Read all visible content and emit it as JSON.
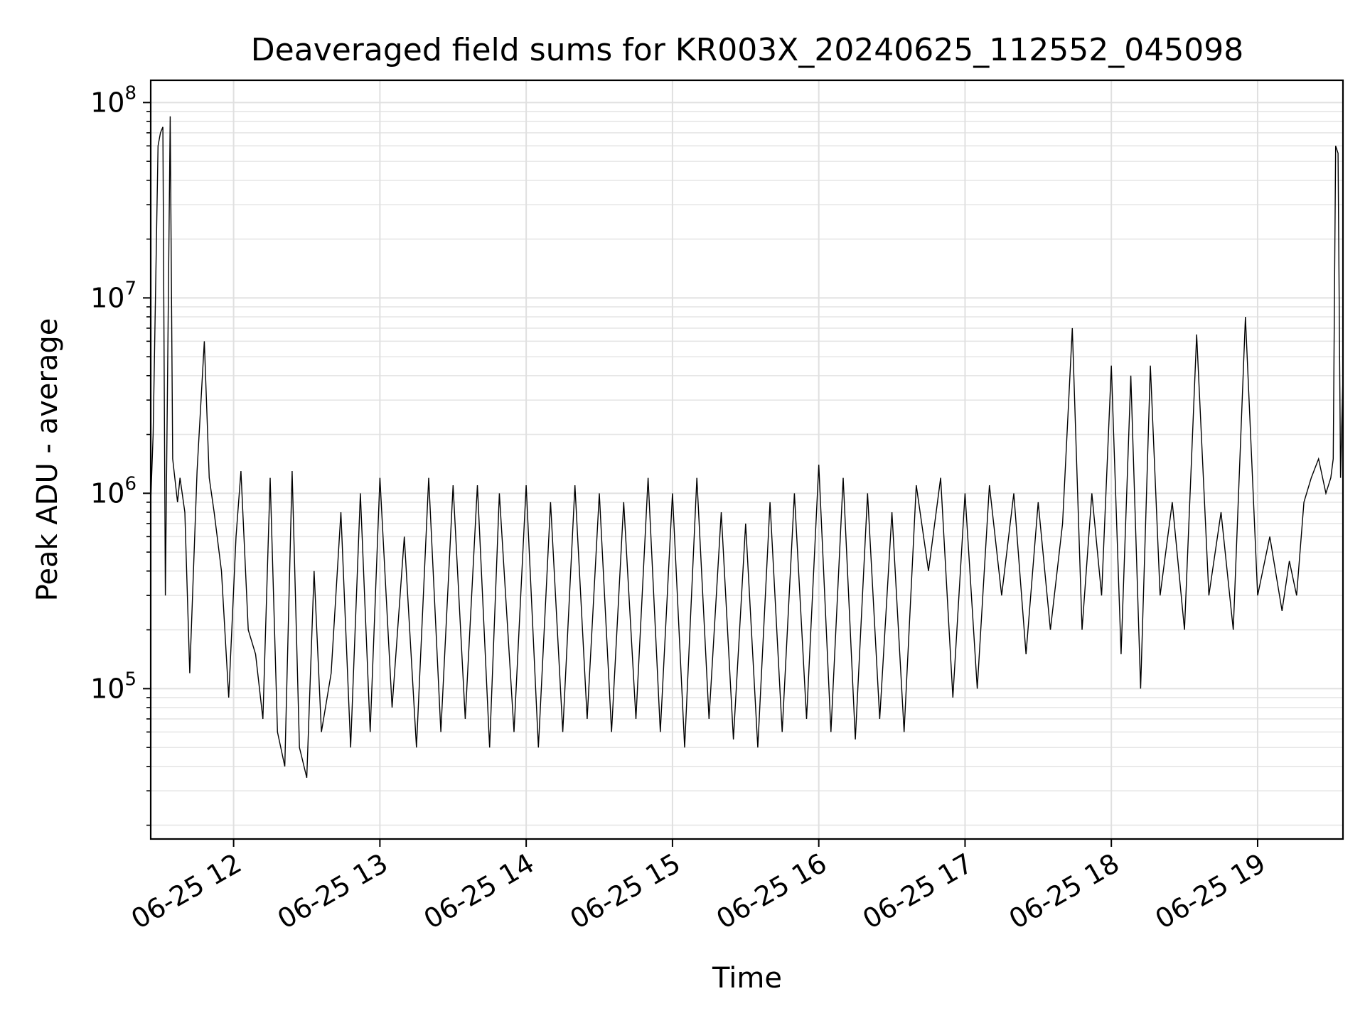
{
  "chart_data": {
    "type": "line",
    "title": "Deaveraged field sums for KR003X_20240625_112552_045098",
    "xlabel": "Time",
    "ylabel": "Peak ADU - average",
    "xscale": "time",
    "yscale": "log",
    "grid": true,
    "x_range": [
      "2024-06-25 11:26",
      "2024-06-25 19:35"
    ],
    "ylim": [
      17000,
      130000000
    ],
    "x_ticks": [
      "2024-06-25 12:00",
      "2024-06-25 13:00",
      "2024-06-25 14:00",
      "2024-06-25 15:00",
      "2024-06-25 16:00",
      "2024-06-25 17:00",
      "2024-06-25 18:00",
      "2024-06-25 19:00"
    ],
    "x_tick_labels": [
      "06-25 12",
      "06-25 13",
      "06-25 14",
      "06-25 15",
      "06-25 16",
      "06-25 17",
      "06-25 18",
      "06-25 19"
    ],
    "y_ticks": [
      100000,
      1000000,
      10000000,
      100000000
    ],
    "y_tick_labels": [
      {
        "base": "10",
        "exp": "5"
      },
      {
        "base": "10",
        "exp": "6"
      },
      {
        "base": "10",
        "exp": "7"
      },
      {
        "base": "10",
        "exp": "8"
      }
    ],
    "series": [
      {
        "color": "#000000",
        "x": [
          "2024-06-25 11:26",
          "2024-06-25 11:27",
          "2024-06-25 11:29",
          "2024-06-25 11:30",
          "2024-06-25 11:31",
          "2024-06-25 11:32",
          "2024-06-25 11:34",
          "2024-06-25 11:35",
          "2024-06-25 11:37",
          "2024-06-25 11:38",
          "2024-06-25 11:40",
          "2024-06-25 11:42",
          "2024-06-25 11:45",
          "2024-06-25 11:48",
          "2024-06-25 11:50",
          "2024-06-25 11:52",
          "2024-06-25 11:55",
          "2024-06-25 11:58",
          "2024-06-25 12:01",
          "2024-06-25 12:03",
          "2024-06-25 12:06",
          "2024-06-25 12:09",
          "2024-06-25 12:12",
          "2024-06-25 12:15",
          "2024-06-25 12:18",
          "2024-06-25 12:21",
          "2024-06-25 12:24",
          "2024-06-25 12:27",
          "2024-06-25 12:30",
          "2024-06-25 12:33",
          "2024-06-25 12:36",
          "2024-06-25 12:40",
          "2024-06-25 12:44",
          "2024-06-25 12:48",
          "2024-06-25 12:52",
          "2024-06-25 12:56",
          "2024-06-25 13:00",
          "2024-06-25 13:05",
          "2024-06-25 13:10",
          "2024-06-25 13:15",
          "2024-06-25 13:20",
          "2024-06-25 13:25",
          "2024-06-25 13:30",
          "2024-06-25 13:35",
          "2024-06-25 13:40",
          "2024-06-25 13:45",
          "2024-06-25 13:49",
          "2024-06-25 13:55",
          "2024-06-25 14:00",
          "2024-06-25 14:05",
          "2024-06-25 14:10",
          "2024-06-25 14:15",
          "2024-06-25 14:20",
          "2024-06-25 14:25",
          "2024-06-25 14:30",
          "2024-06-25 14:35",
          "2024-06-25 14:40",
          "2024-06-25 14:45",
          "2024-06-25 14:50",
          "2024-06-25 14:55",
          "2024-06-25 15:00",
          "2024-06-25 15:05",
          "2024-06-25 15:10",
          "2024-06-25 15:15",
          "2024-06-25 15:20",
          "2024-06-25 15:25",
          "2024-06-25 15:30",
          "2024-06-25 15:35",
          "2024-06-25 15:40",
          "2024-06-25 15:45",
          "2024-06-25 15:50",
          "2024-06-25 15:55",
          "2024-06-25 16:00",
          "2024-06-25 16:05",
          "2024-06-25 16:10",
          "2024-06-25 16:15",
          "2024-06-25 16:20",
          "2024-06-25 16:25",
          "2024-06-25 16:30",
          "2024-06-25 16:35",
          "2024-06-25 16:40",
          "2024-06-25 16:45",
          "2024-06-25 16:50",
          "2024-06-25 16:55",
          "2024-06-25 17:00",
          "2024-06-25 17:05",
          "2024-06-25 17:10",
          "2024-06-25 17:15",
          "2024-06-25 17:20",
          "2024-06-25 17:25",
          "2024-06-25 17:30",
          "2024-06-25 17:35",
          "2024-06-25 17:40",
          "2024-06-25 17:44",
          "2024-06-25 17:48",
          "2024-06-25 17:52",
          "2024-06-25 17:56",
          "2024-06-25 18:00",
          "2024-06-25 18:04",
          "2024-06-25 18:08",
          "2024-06-25 18:12",
          "2024-06-25 18:16",
          "2024-06-25 18:20",
          "2024-06-25 18:25",
          "2024-06-25 18:30",
          "2024-06-25 18:35",
          "2024-06-25 18:40",
          "2024-06-25 18:45",
          "2024-06-25 18:50",
          "2024-06-25 18:55",
          "2024-06-25 19:00",
          "2024-06-25 19:05",
          "2024-06-25 19:10",
          "2024-06-25 19:13",
          "2024-06-25 19:16",
          "2024-06-25 19:19",
          "2024-06-25 19:22",
          "2024-06-25 19:25",
          "2024-06-25 19:28",
          "2024-06-25 19:30",
          "2024-06-25 19:31",
          "2024-06-25 19:32",
          "2024-06-25 19:33",
          "2024-06-25 19:34",
          "2024-06-25 19:35"
        ],
        "y": [
          900000,
          2000000,
          60000000,
          70000000,
          75000000,
          300000,
          85000000,
          1500000,
          900000,
          1200000,
          800000,
          120000,
          1300000,
          6000000,
          1200000,
          800000,
          400000,
          90000,
          600000,
          1300000,
          200000,
          150000,
          70000,
          1200000,
          60000,
          40000,
          1300000,
          50000,
          35000,
          400000,
          60000,
          120000,
          800000,
          50000,
          1000000,
          60000,
          1200000,
          80000,
          600000,
          50000,
          1200000,
          60000,
          1100000,
          70000,
          1100000,
          50000,
          1000000,
          60000,
          1100000,
          50000,
          900000,
          60000,
          1100000,
          70000,
          1000000,
          60000,
          900000,
          70000,
          1200000,
          60000,
          1000000,
          50000,
          1200000,
          70000,
          800000,
          55000,
          700000,
          50000,
          900000,
          60000,
          1000000,
          70000,
          1400000,
          60000,
          1200000,
          55000,
          1000000,
          70000,
          800000,
          60000,
          1100000,
          400000,
          1200000,
          90000,
          1000000,
          100000,
          1100000,
          300000,
          1000000,
          150000,
          900000,
          200000,
          700000,
          7000000,
          200000,
          1000000,
          300000,
          4500000,
          150000,
          4000000,
          100000,
          4500000,
          300000,
          900000,
          200000,
          6500000,
          300000,
          800000,
          200000,
          8000000,
          300000,
          600000,
          250000,
          450000,
          300000,
          900000,
          1200000,
          1500000,
          1000000,
          1200000,
          1500000,
          60000000,
          55000000,
          1200000,
          4000000
        ]
      }
    ]
  }
}
